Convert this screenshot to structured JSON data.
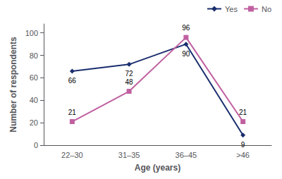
{
  "chart_data": {
    "type": "line",
    "xlabel": "Age (years)",
    "ylabel": "Number of respondents",
    "categories": [
      "22–30",
      "31–35",
      "36–45",
      ">46"
    ],
    "series": [
      {
        "name": "Yes",
        "color": "#1a2e6e",
        "marker": "diamond",
        "values": [
          66,
          72,
          90,
          9
        ]
      },
      {
        "name": "No",
        "color": "#c060a0",
        "marker": "square",
        "values": [
          21,
          48,
          96,
          21
        ]
      }
    ],
    "ylim": [
      0,
      108
    ],
    "yticks": [
      0,
      20,
      40,
      60,
      80,
      100
    ],
    "legend": "upper right",
    "data_labels": true,
    "grid": false
  }
}
